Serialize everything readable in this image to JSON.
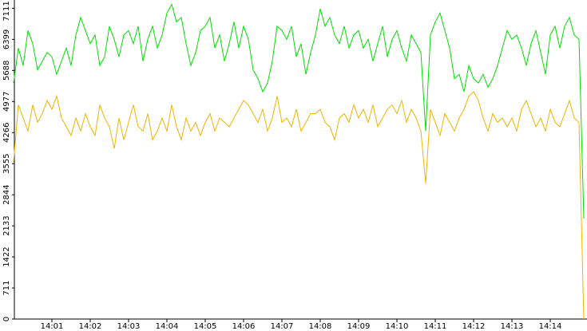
{
  "chart_data": {
    "type": "line",
    "categories": [
      null,
      null,
      null,
      null,
      null,
      null,
      null,
      null,
      "14:01",
      null,
      null,
      null,
      null,
      null,
      null,
      null,
      "14:02",
      null,
      null,
      null,
      null,
      null,
      null,
      null,
      "14:03",
      null,
      null,
      null,
      null,
      null,
      null,
      null,
      "14:04",
      null,
      null,
      null,
      null,
      null,
      null,
      null,
      "14:05",
      null,
      null,
      null,
      null,
      null,
      null,
      null,
      "14:06",
      null,
      null,
      null,
      null,
      null,
      null,
      null,
      "14:07",
      null,
      null,
      null,
      null,
      null,
      null,
      null,
      "14:08",
      null,
      null,
      null,
      null,
      null,
      null,
      null,
      "14:09",
      null,
      null,
      null,
      null,
      null,
      null,
      null,
      "14:10",
      null,
      null,
      null,
      null,
      null,
      null,
      null,
      "14:11",
      null,
      null,
      null,
      null,
      null,
      null,
      null,
      "14:12",
      null,
      null,
      null,
      null,
      null,
      null,
      null,
      "14:13",
      null,
      null,
      null,
      null,
      null,
      null,
      null,
      "14:14",
      null,
      null,
      null,
      null,
      null,
      null,
      null
    ],
    "series": [
      {
        "color": "#00e000",
        "values": [
          5400,
          6200,
          5800,
          6600,
          6300,
          5700,
          5900,
          6100,
          6000,
          5600,
          5900,
          6200,
          5800,
          6500,
          6900,
          6600,
          6300,
          6500,
          5800,
          6000,
          6700,
          6400,
          6000,
          6500,
          6600,
          6300,
          6700,
          5900,
          6400,
          6700,
          6200,
          6500,
          7000,
          7200,
          6800,
          6900,
          6300,
          5800,
          6100,
          6600,
          6700,
          6900,
          6200,
          6500,
          5900,
          6300,
          6800,
          6200,
          6700,
          6400,
          5700,
          5500,
          5200,
          5400,
          5900,
          6700,
          6600,
          6400,
          6700,
          6000,
          6300,
          5600,
          6100,
          6500,
          7100,
          6700,
          6900,
          6500,
          6300,
          6700,
          6200,
          6500,
          6600,
          6200,
          6400,
          5900,
          6300,
          6700,
          6000,
          6400,
          6600,
          6200,
          5900,
          6500,
          6300,
          6100,
          4300,
          6500,
          6800,
          7000,
          6600,
          6200,
          5500,
          5600,
          5200,
          5800,
          5500,
          5400,
          5600,
          5300,
          5500,
          5800,
          6200,
          6600,
          6400,
          6500,
          6200,
          5800,
          6300,
          6600,
          6100,
          5600,
          6500,
          6700,
          6200,
          6700,
          6900,
          6500,
          6400,
          2300
        ]
      },
      {
        "color": "#f0b400",
        "values": [
          3600,
          4900,
          4600,
          4300,
          4900,
          4500,
          4700,
          5000,
          4800,
          5100,
          4600,
          4400,
          4200,
          4600,
          4300,
          4700,
          4400,
          4200,
          4900,
          4600,
          4400,
          3900,
          4600,
          4100,
          4500,
          4900,
          4400,
          4300,
          4700,
          4100,
          4300,
          4600,
          4300,
          4900,
          4400,
          4100,
          4600,
          4300,
          4500,
          4200,
          4500,
          4700,
          4300,
          4600,
          4500,
          4400,
          4600,
          4800,
          5000,
          4900,
          4700,
          4500,
          4800,
          4300,
          4600,
          5100,
          4500,
          4600,
          4400,
          4800,
          4300,
          4500,
          4700,
          4700,
          4800,
          4500,
          4400,
          4100,
          4600,
          4700,
          4500,
          4900,
          4600,
          4800,
          4500,
          4900,
          4400,
          4600,
          4800,
          4900,
          4700,
          5000,
          4500,
          4800,
          4600,
          4300,
          3100,
          4800,
          4500,
          4200,
          4700,
          4500,
          4300,
          4600,
          4800,
          5100,
          5200,
          5000,
          4600,
          4300,
          4700,
          4500,
          4600,
          4400,
          4600,
          4300,
          4800,
          5000,
          4700,
          4400,
          4600,
          4300,
          4800,
          4500,
          4400,
          4700,
          5000,
          4600,
          4500,
          0
        ]
      }
    ],
    "ylim": [
      0,
      7300
    ],
    "yticks": [
      0,
      711,
      1422,
      2133,
      2844,
      3555,
      4266,
      4977,
      5688,
      6399,
      7111
    ]
  }
}
